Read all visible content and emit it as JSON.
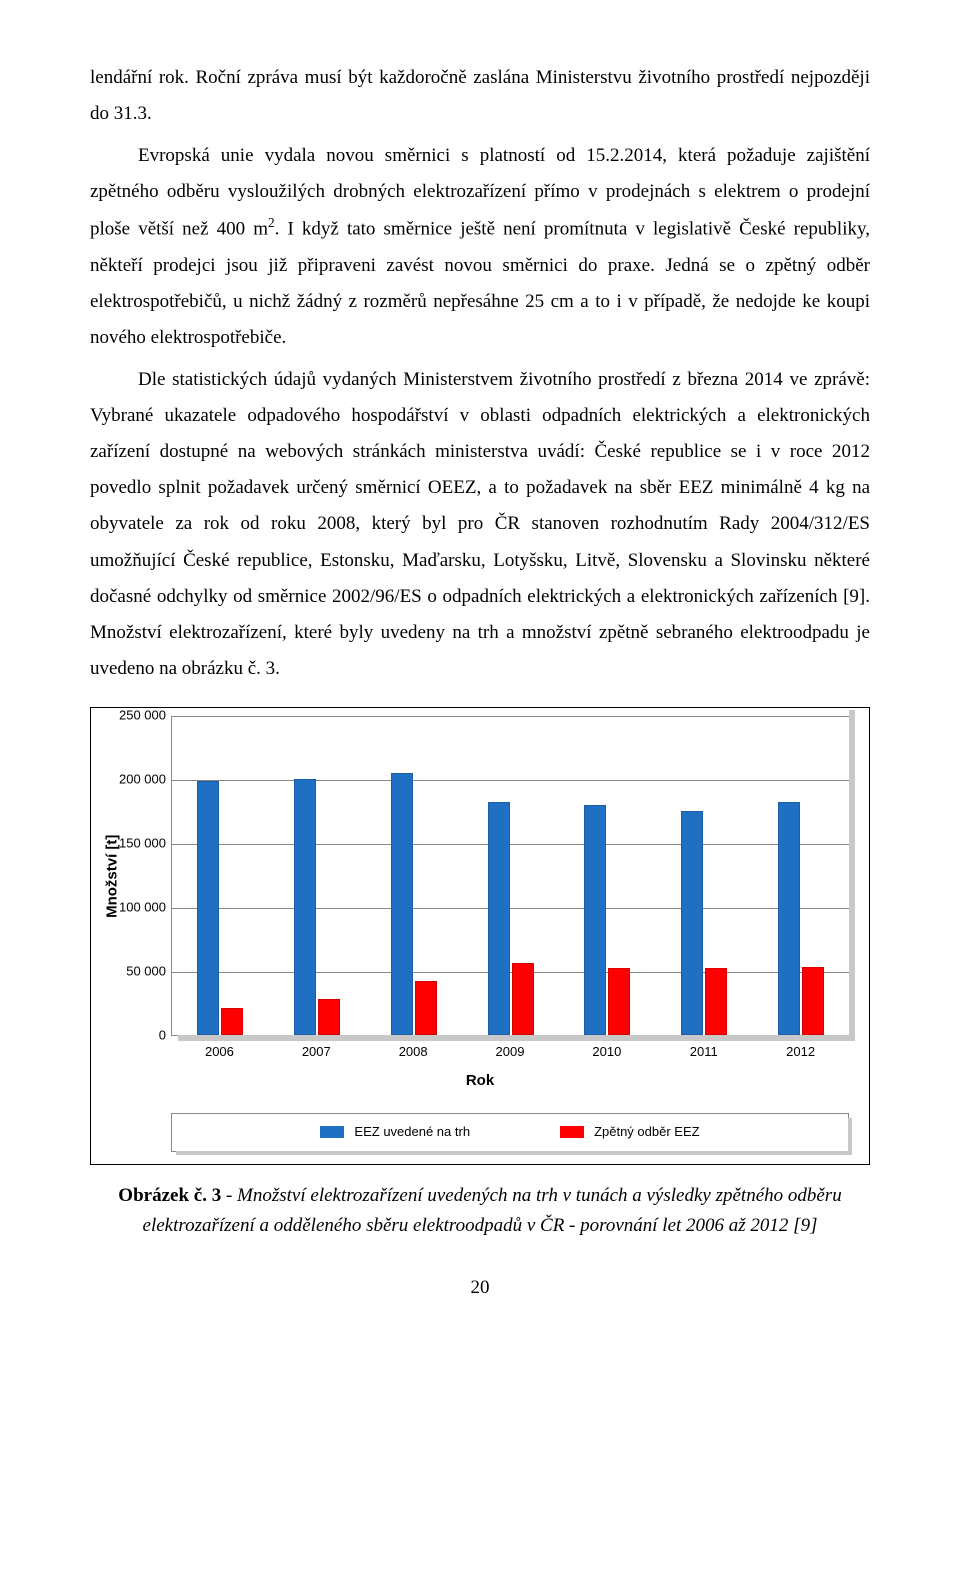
{
  "paragraphs": {
    "p1": "lendářní rok. Roční zpráva musí být každoročně zaslána Ministerstvu životního prostředí nejpozději do 31.3.",
    "p2a": "Evropská unie vydala novou směrnici s platností od 15.2.2014, která požaduje zajištění zpětného odběru vysloužilých drobných elektrozařízení přímo v prodejnách s elektrem o prodejní ploše větší než 400 m",
    "p2b": ". I když tato směrnice ještě není promítnuta v legislativě České republiky, někteří prodejci jsou již připraveni zavést novou směrnici do praxe. Jedná se o zpětný odběr elektrospotřebičů, u nichž žádný z rozměrů nepřesáhne 25 cm a to i v případě, že nedojde ke koupi nového elektrospotřebiče.",
    "p3": "Dle statistických údajů vydaných Ministerstvem životního prostředí z března 2014 ve zprávě: Vybrané ukazatele odpadového hospodářství v oblasti odpadních elektrických a elektronických zařízení dostupné na webových stránkách ministerstva uvádí: České republice se i v roce 2012 povedlo splnit požadavek určený směrnicí OEEZ, a to požadavek na sběr EEZ minimálně 4 kg na obyvatele za rok od roku 2008, který byl pro ČR stanoven rozhodnutím Rady 2004/312/ES umožňující České republice, Estonsku, Maďarsku, Lotyšsku, Litvě, Slovensku a Slovinsku některé dočasné odchylky od směrnice 2002/96/ES o odpadních elektrických a elektronických zařízeních [9]. Množství elektrozařízení, které byly uvedeny na trh a množství zpětně sebraného elektroodpadu je uvedeno na obrázku č. 3."
  },
  "chart": {
    "ylabel": "Množství [t]",
    "xlabel": "Rok",
    "ymax": 250000,
    "yticks": [
      "0",
      "50 000",
      "100 000",
      "150 000",
      "200 000",
      "250 000"
    ],
    "categories": [
      "2006",
      "2007",
      "2008",
      "2009",
      "2010",
      "2011",
      "2012"
    ],
    "series": [
      {
        "name": "EEZ uvedené na trh",
        "color": "#1f6fc2",
        "values": [
          198000,
          200000,
          205000,
          182000,
          180000,
          175000,
          182000
        ]
      },
      {
        "name": "Zpětný odběr EEZ",
        "color": "#ff0000",
        "values": [
          21000,
          28000,
          42000,
          56000,
          52000,
          52000,
          53000
        ]
      }
    ],
    "bg": "#ffffff",
    "grid_color": "#888888"
  },
  "caption": {
    "label": "Obrázek č. 3",
    "sep": " - ",
    "text": "Množství elektrozařízení uvedených na trh v tunách a výsledky zpětného odběru elektrozařízení a odděleného sběru elektroodpadů v ČR - porovnání let 2006 až 2012 [9]"
  },
  "page_number": "20"
}
